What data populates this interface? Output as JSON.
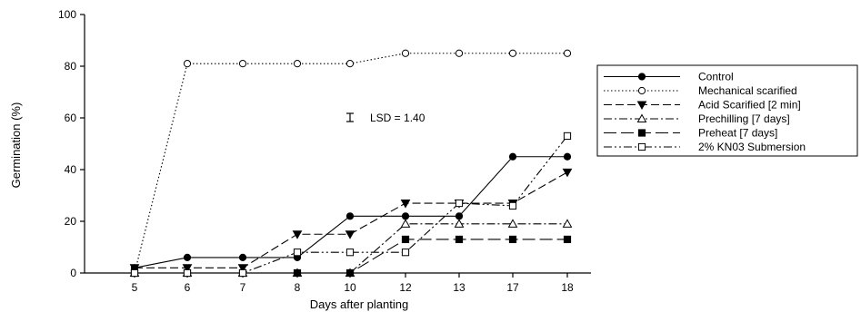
{
  "chart_data": {
    "type": "line",
    "xlabel": "Days after planting",
    "ylabel": "Germination (%)",
    "categories": [
      "5",
      "6",
      "7",
      "8",
      "10",
      "12",
      "13",
      "17",
      "18"
    ],
    "ylim": [
      0,
      100
    ],
    "yticks": [
      "0",
      "20",
      "40",
      "60",
      "80",
      "100"
    ],
    "grid": false,
    "legend_position": "right",
    "annotation": "LSD = 1.40",
    "series": [
      {
        "name": "Control",
        "marker": "filled-circle",
        "dash": "solid",
        "values": [
          2,
          6,
          6,
          6,
          22,
          22,
          22,
          45,
          45
        ]
      },
      {
        "name": "Mechanical scarified",
        "marker": "open-circle",
        "dash": "dotted",
        "values": [
          0,
          81,
          81,
          81,
          81,
          85,
          85,
          85,
          85
        ]
      },
      {
        "name": "Acid Scarified [2 min]",
        "marker": "filled-triangle-down",
        "dash": "dashed",
        "values": [
          2,
          2,
          2,
          15,
          15,
          27,
          27,
          27,
          39
        ]
      },
      {
        "name": "Prechilling [7 days]",
        "marker": "open-triangle-up",
        "dash": "dash-dot",
        "values": [
          0,
          0,
          0,
          0,
          0,
          19,
          19,
          19,
          19
        ]
      },
      {
        "name": "Preheat [7 days]",
        "marker": "filled-square",
        "dash": "long-dash",
        "values": [
          0,
          0,
          0,
          0,
          0,
          13,
          13,
          13,
          13
        ]
      },
      {
        "name": "2% KN03 Submersion",
        "marker": "open-square",
        "dash": "dash-dot-dot",
        "values": [
          0,
          0,
          0,
          8,
          8,
          8,
          27,
          26,
          53
        ]
      }
    ]
  }
}
